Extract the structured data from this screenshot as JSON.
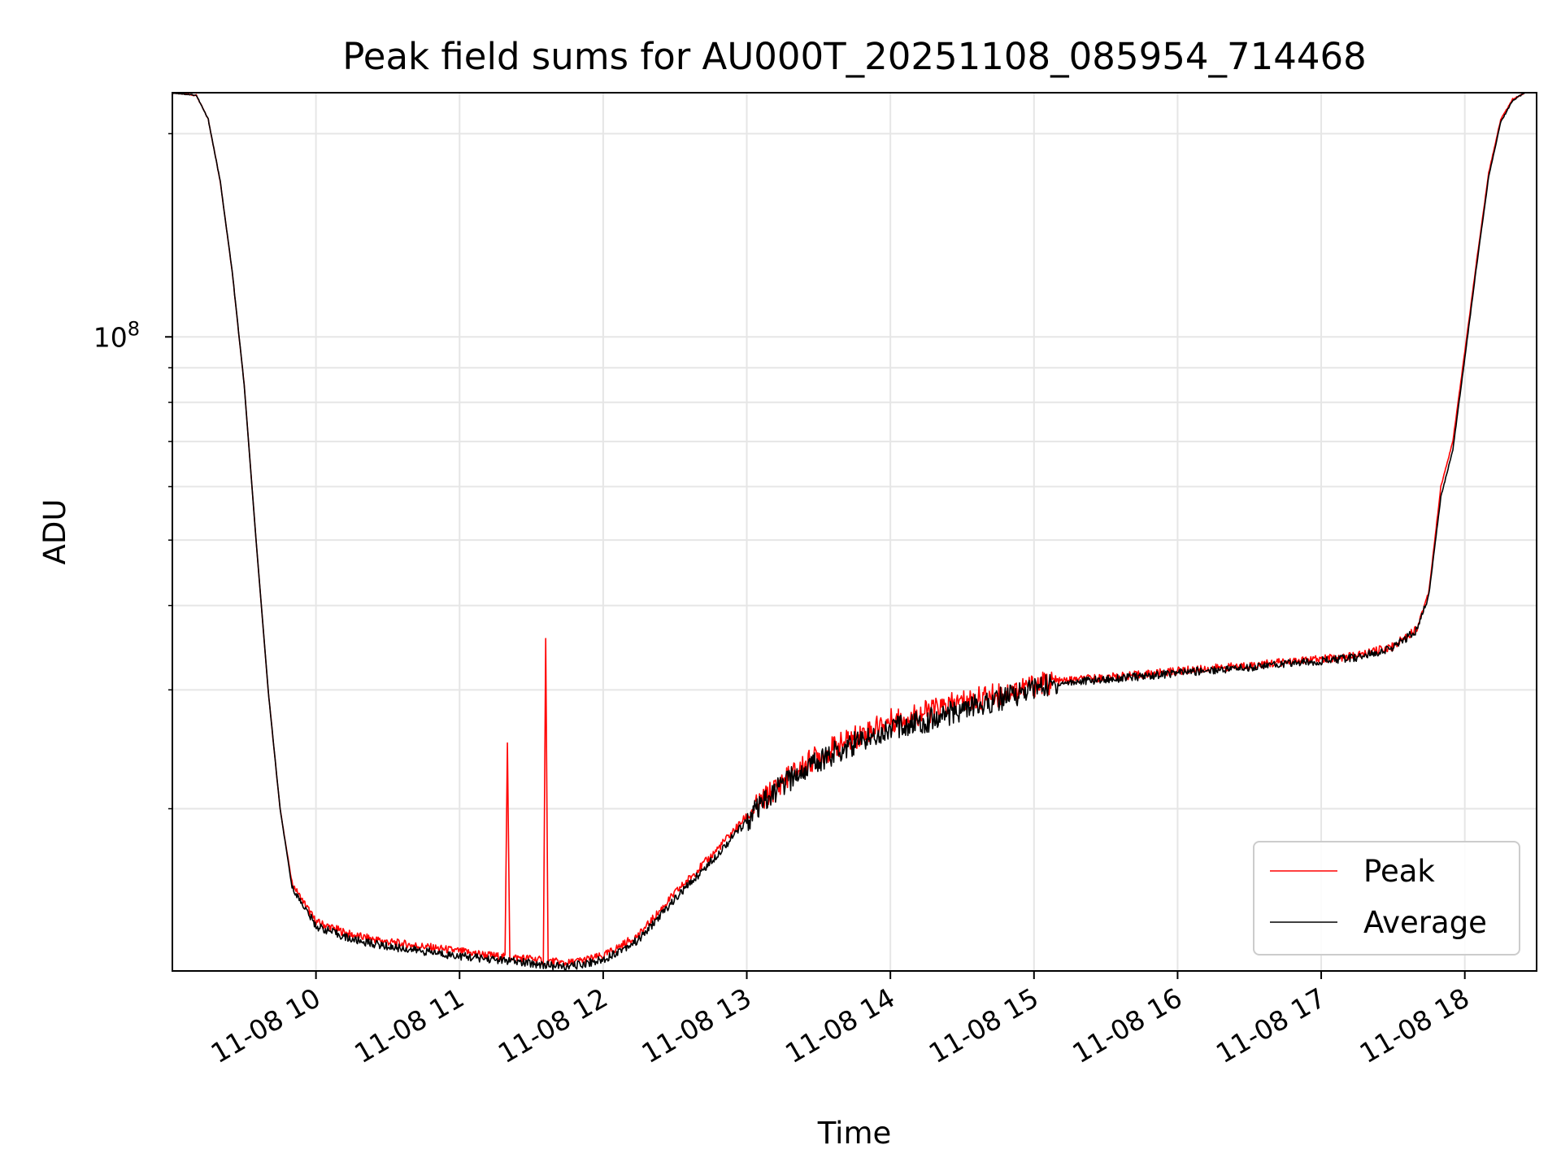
{
  "chart_data": {
    "type": "line",
    "title": "Peak field sums for AU000T_20251108_085954_714468",
    "xlabel": "Time",
    "ylabel": "ADU",
    "x_scale": "time",
    "y_scale": "log",
    "xlim": [
      "11-08 09:00",
      "11-08 18:30"
    ],
    "ylim": [
      11500000,
      230000000
    ],
    "grid": true,
    "legend_position": "lower-right",
    "x_ticks": [
      "11-08 10",
      "11-08 11",
      "11-08 12",
      "11-08 13",
      "11-08 14",
      "11-08 15",
      "11-08 16",
      "11-08 17",
      "11-08 18"
    ],
    "y_ticks": [
      {
        "value": 100000000,
        "base": "10",
        "exponent": "8"
      }
    ],
    "series": [
      {
        "name": "Peak",
        "color": "#ff0000",
        "points": [
          [
            "11-08 09:00",
            230000000
          ],
          [
            "11-08 09:10",
            228000000
          ],
          [
            "11-08 09:15",
            210000000
          ],
          [
            "11-08 09:20",
            170000000
          ],
          [
            "11-08 09:25",
            125000000
          ],
          [
            "11-08 09:30",
            85000000
          ],
          [
            "11-08 09:35",
            50000000
          ],
          [
            "11-08 09:40",
            30000000
          ],
          [
            "11-08 09:45",
            20000000
          ],
          [
            "11-08 09:50",
            15500000
          ],
          [
            "11-08 10:00",
            13600000
          ],
          [
            "11-08 10:15",
            13000000
          ],
          [
            "11-08 10:30",
            12700000
          ],
          [
            "11-08 10:45",
            12500000
          ],
          [
            "11-08 11:00",
            12300000
          ],
          [
            "11-08 11:15",
            12100000
          ],
          [
            "11-08 11:19",
            12050000
          ],
          [
            "11-08 11:20",
            25000000
          ],
          [
            "11-08 11:21",
            12050000
          ],
          [
            "11-08 11:30",
            12000000
          ],
          [
            "11-08 11:35",
            11900000
          ],
          [
            "11-08 11:36",
            35500000
          ],
          [
            "11-08 11:37",
            11900000
          ],
          [
            "11-08 11:45",
            11800000
          ],
          [
            "11-08 12:00",
            12100000
          ],
          [
            "11-08 12:15",
            13000000
          ],
          [
            "11-08 12:30",
            15000000
          ],
          [
            "11-08 12:45",
            17000000
          ],
          [
            "11-08 13:00",
            19500000
          ],
          [
            "11-08 13:15",
            22000000
          ],
          [
            "11-08 13:30",
            24000000
          ],
          [
            "11-08 13:45",
            25500000
          ],
          [
            "11-08 14:00",
            27000000
          ],
          [
            "11-08 14:15",
            27800000
          ],
          [
            "11-08 14:30",
            28800000
          ],
          [
            "11-08 14:45",
            29500000
          ],
          [
            "11-08 15:00",
            30500000
          ],
          [
            "11-08 15:15",
            31000000
          ],
          [
            "11-08 15:30",
            31300000
          ],
          [
            "11-08 15:45",
            31600000
          ],
          [
            "11-08 16:00",
            32000000
          ],
          [
            "11-08 16:15",
            32300000
          ],
          [
            "11-08 16:30",
            32600000
          ],
          [
            "11-08 16:45",
            33000000
          ],
          [
            "11-08 17:00",
            33300000
          ],
          [
            "11-08 17:15",
            33700000
          ],
          [
            "11-08 17:30",
            34800000
          ],
          [
            "11-08 17:40",
            37000000
          ],
          [
            "11-08 17:45",
            42000000
          ],
          [
            "11-08 17:50",
            60000000
          ],
          [
            "11-08 17:55",
            70000000
          ],
          [
            "11-08 18:00",
            95000000
          ],
          [
            "11-08 18:05",
            130000000
          ],
          [
            "11-08 18:10",
            175000000
          ],
          [
            "11-08 18:15",
            210000000
          ],
          [
            "11-08 18:20",
            225000000
          ],
          [
            "11-08 18:25",
            230000000
          ]
        ]
      },
      {
        "name": "Average",
        "color": "#000000",
        "points": [
          [
            "11-08 09:00",
            230000000
          ],
          [
            "11-08 09:10",
            228000000
          ],
          [
            "11-08 09:15",
            210000000
          ],
          [
            "11-08 09:20",
            170000000
          ],
          [
            "11-08 09:25",
            125000000
          ],
          [
            "11-08 09:30",
            85000000
          ],
          [
            "11-08 09:35",
            50000000
          ],
          [
            "11-08 09:40",
            30000000
          ],
          [
            "11-08 09:45",
            20000000
          ],
          [
            "11-08 09:50",
            15300000
          ],
          [
            "11-08 10:00",
            13400000
          ],
          [
            "11-08 10:15",
            12800000
          ],
          [
            "11-08 10:30",
            12500000
          ],
          [
            "11-08 10:45",
            12300000
          ],
          [
            "11-08 11:00",
            12100000
          ],
          [
            "11-08 11:15",
            11950000
          ],
          [
            "11-08 11:30",
            11800000
          ],
          [
            "11-08 11:45",
            11650000
          ],
          [
            "11-08 12:00",
            11950000
          ],
          [
            "11-08 12:15",
            12800000
          ],
          [
            "11-08 12:30",
            14700000
          ],
          [
            "11-08 12:45",
            16700000
          ],
          [
            "11-08 13:00",
            19200000
          ],
          [
            "11-08 13:15",
            21700000
          ],
          [
            "11-08 13:30",
            23600000
          ],
          [
            "11-08 13:45",
            25000000
          ],
          [
            "11-08 14:00",
            26300000
          ],
          [
            "11-08 14:15",
            27000000
          ],
          [
            "11-08 14:30",
            28000000
          ],
          [
            "11-08 14:45",
            29000000
          ],
          [
            "11-08 15:00",
            30200000
          ],
          [
            "11-08 15:15",
            30800000
          ],
          [
            "11-08 15:30",
            31100000
          ],
          [
            "11-08 15:45",
            31400000
          ],
          [
            "11-08 16:00",
            31800000
          ],
          [
            "11-08 16:15",
            32100000
          ],
          [
            "11-08 16:30",
            32400000
          ],
          [
            "11-08 16:45",
            32800000
          ],
          [
            "11-08 17:00",
            33100000
          ],
          [
            "11-08 17:15",
            33500000
          ],
          [
            "11-08 17:30",
            34600000
          ],
          [
            "11-08 17:40",
            36800000
          ],
          [
            "11-08 17:45",
            41500000
          ],
          [
            "11-08 17:50",
            58000000
          ],
          [
            "11-08 17:55",
            68000000
          ],
          [
            "11-08 18:00",
            93000000
          ],
          [
            "11-08 18:05",
            128000000
          ],
          [
            "11-08 18:10",
            173000000
          ],
          [
            "11-08 18:15",
            208000000
          ],
          [
            "11-08 18:20",
            224000000
          ],
          [
            "11-08 18:25",
            230000000
          ]
        ]
      }
    ]
  }
}
